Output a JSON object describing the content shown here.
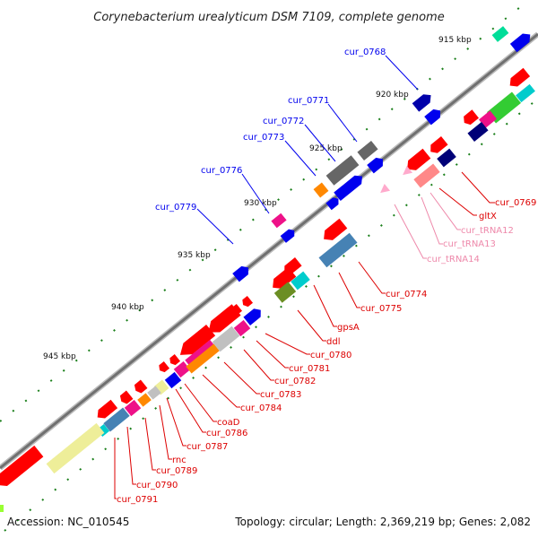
{
  "title": "Corynebacterium urealyticum DSM 7109, complete genome",
  "footer": {
    "accession": "Accession: NC_010545",
    "summary": "Topology: circular; Length: 2,369,219 bp; Genes: 2,082"
  },
  "ticks": [
    {
      "label": "915 kbp"
    },
    {
      "label": "920 kbp"
    },
    {
      "label": "925 kbp"
    },
    {
      "label": "930 kbp"
    },
    {
      "label": "935 kbp"
    },
    {
      "label": "940 kbp"
    },
    {
      "label": "945 kbp"
    }
  ],
  "labels": [
    {
      "text": "cur_0768",
      "color": "#0000ee"
    },
    {
      "text": "cur_0771",
      "color": "#0000ee"
    },
    {
      "text": "cur_0772",
      "color": "#0000ee"
    },
    {
      "text": "cur_0773",
      "color": "#0000ee"
    },
    {
      "text": "cur_0776",
      "color": "#0000ee"
    },
    {
      "text": "cur_0779",
      "color": "#0000ee"
    },
    {
      "text": "cur_0769",
      "color": "#dd0000"
    },
    {
      "text": "gltX",
      "color": "#dd0000"
    },
    {
      "text": "cur_tRNA12",
      "color": "#ee88aa"
    },
    {
      "text": "cur_tRNA13",
      "color": "#ee88aa"
    },
    {
      "text": "cur_tRNA14",
      "color": "#ee88aa"
    },
    {
      "text": "cur_0774",
      "color": "#dd0000"
    },
    {
      "text": "cur_0775",
      "color": "#dd0000"
    },
    {
      "text": "gpsA",
      "color": "#dd0000"
    },
    {
      "text": "ddl",
      "color": "#dd0000"
    },
    {
      "text": "cur_0780",
      "color": "#dd0000"
    },
    {
      "text": "cur_0781",
      "color": "#dd0000"
    },
    {
      "text": "cur_0782",
      "color": "#dd0000"
    },
    {
      "text": "cur_0783",
      "color": "#dd0000"
    },
    {
      "text": "cur_0784",
      "color": "#dd0000"
    },
    {
      "text": "coaD",
      "color": "#dd0000"
    },
    {
      "text": "cur_0786",
      "color": "#dd0000"
    },
    {
      "text": "cur_0787",
      "color": "#dd0000"
    },
    {
      "text": "rnc",
      "color": "#dd0000"
    },
    {
      "text": "cur_0789",
      "color": "#dd0000"
    },
    {
      "text": "cur_0790",
      "color": "#dd0000"
    },
    {
      "text": "cur_0791",
      "color": "#dd0000"
    }
  ]
}
